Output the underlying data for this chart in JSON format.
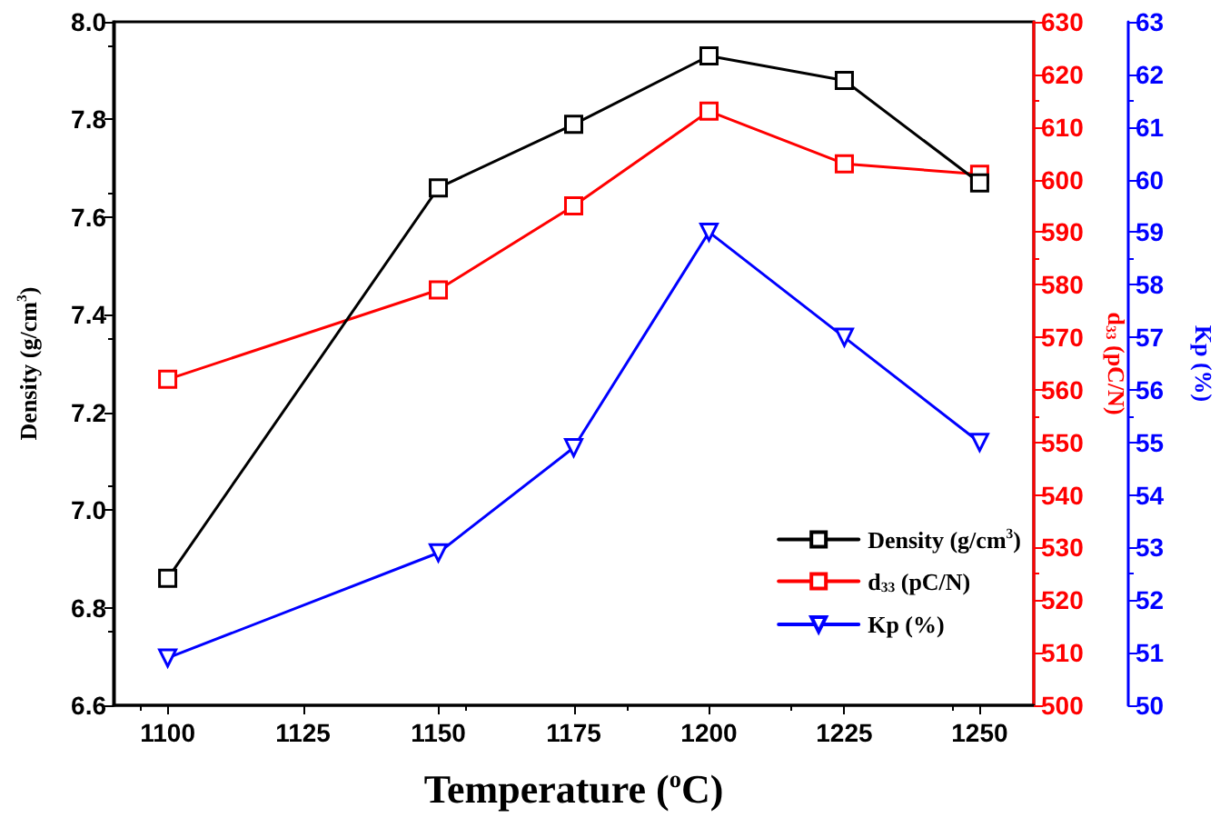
{
  "chart_data": {
    "type": "line",
    "xlabel": "Temperature ($^{o}$C)",
    "ylabel": "Density (g/cm$^{3}$)",
    "y2label": "d$_{33}$ (pC/N)",
    "y3label": "Kp (%)",
    "x": [
      1100,
      1150,
      1175,
      1200,
      1225,
      1250
    ],
    "xlim": [
      1090,
      1260
    ],
    "xticks": [
      1100,
      1125,
      1150,
      1175,
      1200,
      1225,
      1250
    ],
    "ylim": [
      6.6,
      8.0
    ],
    "yticks": [
      6.6,
      6.8,
      {
        "value": 7.0,
        "label": "7.0"
      },
      7.2,
      7.4,
      7.6,
      7.8,
      {
        "value": 8.0,
        "label": "8.0"
      }
    ],
    "y2lim": [
      500,
      630
    ],
    "y2ticks": [
      500,
      510,
      520,
      530,
      540,
      550,
      560,
      570,
      580,
      590,
      600,
      610,
      620,
      630
    ],
    "y3lim": [
      50,
      63
    ],
    "y3ticks": [
      50,
      51,
      52,
      53,
      54,
      55,
      56,
      57,
      58,
      59,
      60,
      61,
      62,
      63
    ],
    "legend": "bottom right",
    "grid": false,
    "line_style": "solid",
    "series": [
      {
        "name": "Density (g/cm$^{3}$)",
        "color": "#000000",
        "marker": "square",
        "values": [
          6.86,
          7.66,
          7.79,
          7.93,
          7.88,
          7.67
        ]
      },
      {
        "name": "d$_{33}$ (pC/N)",
        "color": "#ff0000",
        "marker": "square",
        "axis": "y2",
        "values": [
          562,
          579,
          595,
          613,
          603,
          601
        ]
      },
      {
        "name": "Kp (%)",
        "color": "#0000ff",
        "marker": "triangle",
        "axis": "y3",
        "values": [
          50.9,
          52.9,
          54.9,
          59,
          57,
          55
        ]
      }
    ]
  }
}
